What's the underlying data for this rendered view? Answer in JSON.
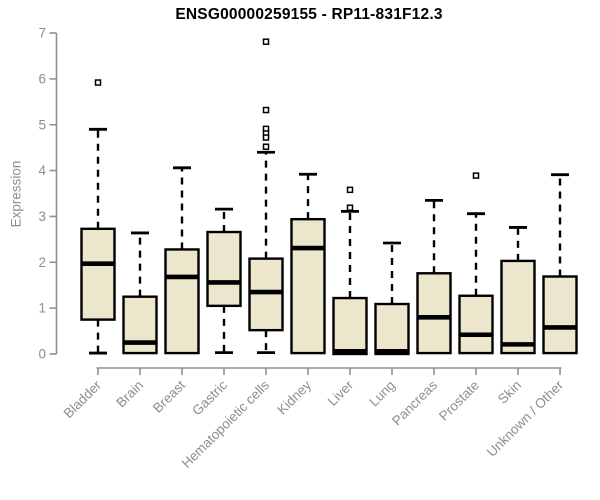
{
  "chart_data": {
    "type": "boxplot",
    "title": "ENSG00000259155 - RP11-831F12.3",
    "ylabel": "Expression",
    "xlabel": "",
    "ylim": [
      0,
      7
    ],
    "yticks": [
      0,
      1,
      2,
      3,
      4,
      5,
      6,
      7
    ],
    "grid": false,
    "legend_position": "none",
    "x_label_rotation_deg": 45,
    "colors": {
      "box_fill": "#ece7cc",
      "box_stroke": "#000000",
      "median": "#000000",
      "whisker": "#000000",
      "outlier_fill": "#ffffff",
      "outlier_stroke": "#000000",
      "axis": "#909090",
      "tick_label": "#8e8e8e",
      "title": "#000000"
    },
    "categories": [
      "Bladder",
      "Brain",
      "Breast",
      "Gastric",
      "Hematopoietic cells",
      "Kidney",
      "Liver",
      "Lung",
      "Pancreas",
      "Prostate",
      "Skin",
      "Unknown / Other"
    ],
    "boxes": [
      {
        "category": "Bladder",
        "whisker_low": 0.02,
        "q1": 0.75,
        "median": 1.97,
        "q3": 2.73,
        "whisker_high": 4.9,
        "outliers": [
          5.92
        ]
      },
      {
        "category": "Brain",
        "whisker_low": 0.02,
        "q1": 0.02,
        "median": 0.25,
        "q3": 1.25,
        "whisker_high": 2.64,
        "outliers": []
      },
      {
        "category": "Breast",
        "whisker_low": 0.02,
        "q1": 0.02,
        "median": 1.68,
        "q3": 2.28,
        "whisker_high": 4.06,
        "outliers": []
      },
      {
        "category": "Gastric",
        "whisker_low": 0.03,
        "q1": 1.05,
        "median": 1.56,
        "q3": 2.66,
        "whisker_high": 3.16,
        "outliers": []
      },
      {
        "category": "Hematopoietic cells",
        "whisker_low": 0.03,
        "q1": 0.52,
        "median": 1.35,
        "q3": 2.08,
        "whisker_high": 4.4,
        "outliers": [
          6.81,
          5.32,
          4.91,
          4.81,
          4.72,
          4.52
        ]
      },
      {
        "category": "Kidney",
        "whisker_low": 0.02,
        "q1": 0.02,
        "median": 2.31,
        "q3": 2.94,
        "whisker_high": 3.92,
        "outliers": []
      },
      {
        "category": "Liver",
        "whisker_low": 0.0,
        "q1": 0.0,
        "median": 0.06,
        "q3": 1.22,
        "whisker_high": 3.11,
        "outliers": [
          3.58,
          3.19
        ]
      },
      {
        "category": "Lung",
        "whisker_low": 0.0,
        "q1": 0.0,
        "median": 0.06,
        "q3": 1.09,
        "whisker_high": 2.42,
        "outliers": []
      },
      {
        "category": "Pancreas",
        "whisker_low": 0.02,
        "q1": 0.02,
        "median": 0.8,
        "q3": 1.76,
        "whisker_high": 3.35,
        "outliers": []
      },
      {
        "category": "Prostate",
        "whisker_low": 0.02,
        "q1": 0.02,
        "median": 0.42,
        "q3": 1.27,
        "whisker_high": 3.06,
        "outliers": [
          3.89
        ]
      },
      {
        "category": "Skin",
        "whisker_low": 0.02,
        "q1": 0.02,
        "median": 0.21,
        "q3": 2.03,
        "whisker_high": 2.76,
        "outliers": []
      },
      {
        "category": "Unknown / Other",
        "whisker_low": 0.02,
        "q1": 0.02,
        "median": 0.58,
        "q3": 1.69,
        "whisker_high": 3.91,
        "outliers": []
      }
    ]
  }
}
